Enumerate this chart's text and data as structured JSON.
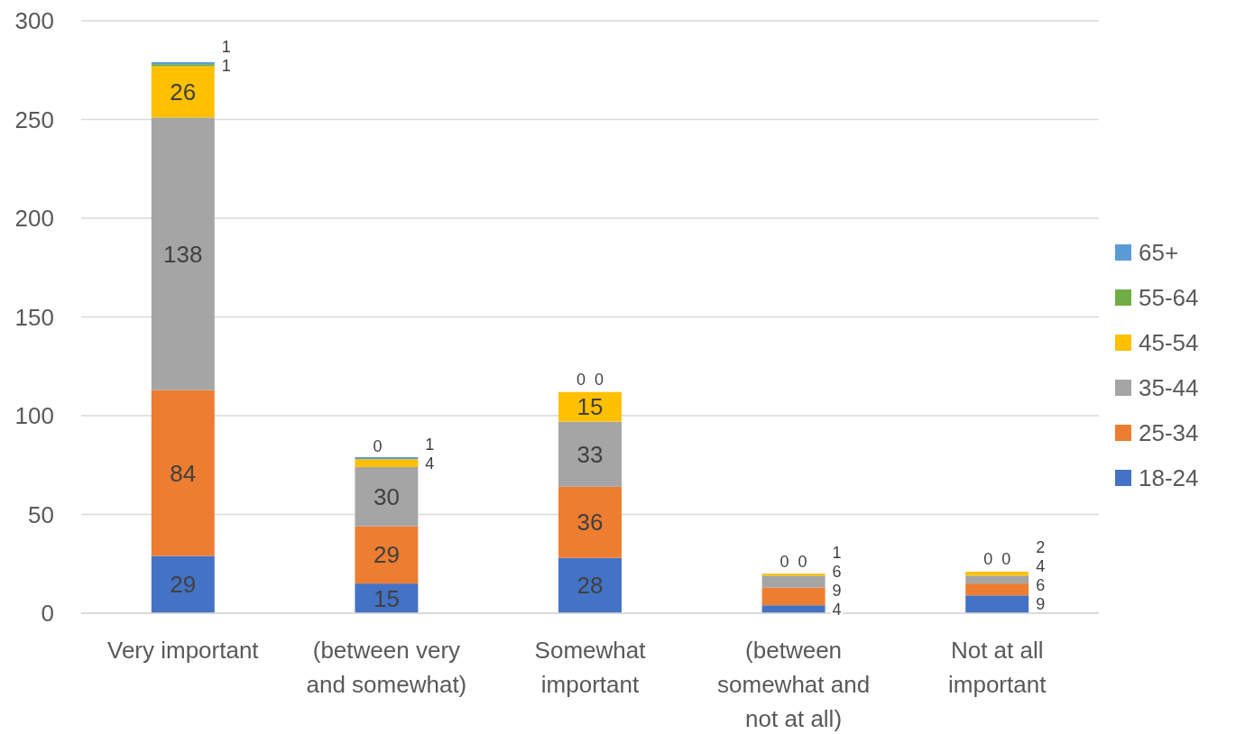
{
  "chart_data": {
    "type": "bar",
    "stacked": true,
    "categories": [
      "Very important",
      "(between very and somewhat)",
      "Somewhat important",
      "(between somewhat and not at all)",
      "Not at all important"
    ],
    "series": [
      {
        "name": "18-24",
        "color": "#4472c4",
        "values": [
          29,
          15,
          28,
          4,
          9
        ]
      },
      {
        "name": "25-34",
        "color": "#ed7d31",
        "values": [
          84,
          29,
          36,
          9,
          6
        ]
      },
      {
        "name": "35-44",
        "color": "#a5a5a5",
        "values": [
          138,
          30,
          33,
          6,
          4
        ]
      },
      {
        "name": "45-54",
        "color": "#ffc000",
        "values": [
          26,
          4,
          15,
          1,
          2
        ]
      },
      {
        "name": "55-64",
        "color": "#70ad47",
        "values": [
          1,
          0,
          0,
          0,
          0
        ]
      },
      {
        "name": "65+",
        "color": "#5b9bd5",
        "values": [
          1,
          1,
          0,
          0,
          0
        ]
      }
    ],
    "ylim": [
      0,
      300
    ],
    "yticks": [
      0,
      50,
      100,
      150,
      200,
      250,
      300
    ],
    "grid": "y",
    "legend": "right",
    "data_labels": true
  }
}
